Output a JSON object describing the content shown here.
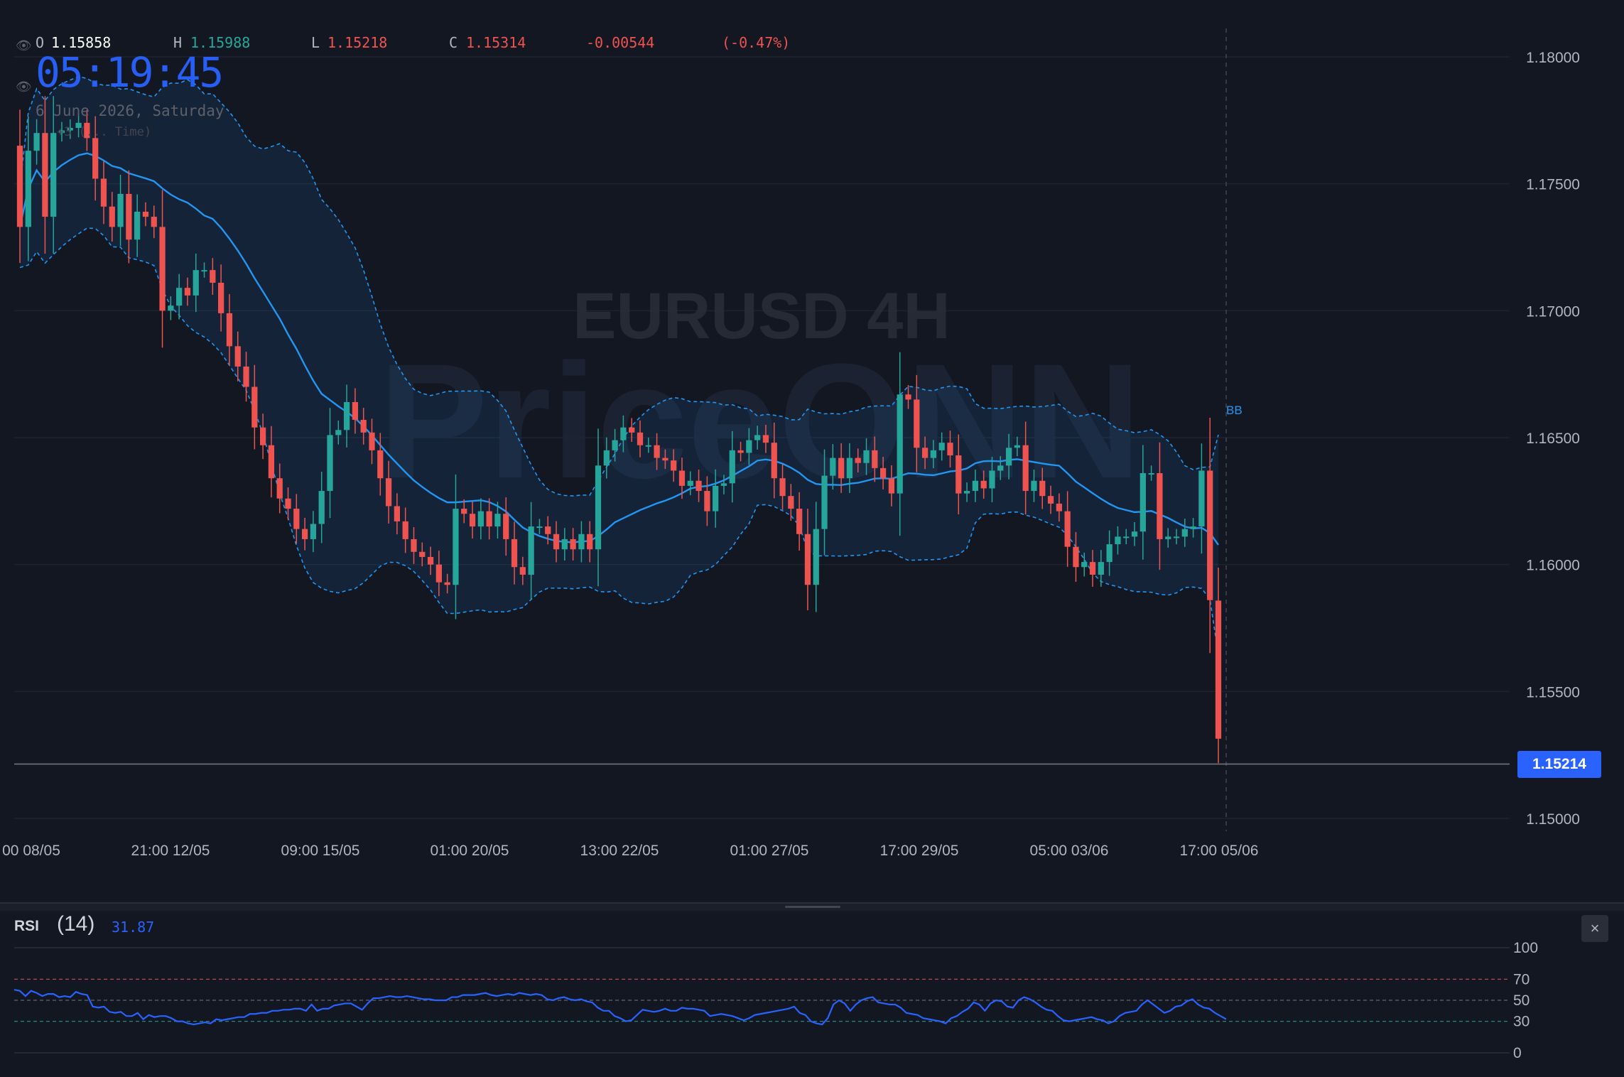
{
  "ohlc": {
    "o_label": "O",
    "o_value": "1.15858",
    "h_label": "H",
    "h_value": "1.15988",
    "l_label": "L",
    "l_value": "1.15218",
    "c_label": "C",
    "c_value": "1.15314",
    "change": "-0.00544",
    "change_pct": "(-0.47%)"
  },
  "clock": {
    "time": "05:19:45",
    "date": "6 June 2026, Saturday",
    "timezone": "+3 (... Time)"
  },
  "watermark": {
    "line1": "EURUSD 4H",
    "line2": "PriceONN"
  },
  "current_price": "1.15214",
  "indicator_label": "BB",
  "rsi": {
    "label": "RSI",
    "period": "(14)",
    "value": "31.87",
    "close_icon": "×"
  },
  "colors": {
    "up": "#26a69a",
    "down": "#ef5350",
    "bb": "#2196f3",
    "rsi": "#2962ff",
    "accent": "#2962ff",
    "background": "#131722"
  },
  "chart_data": [
    {
      "type": "candlestick",
      "title": "",
      "ylim": [
        1.1497,
        1.1812
      ],
      "y_ticks": [
        "1.18000",
        "1.17500",
        "1.17000",
        "1.16500",
        "1.16000",
        "1.15500",
        "1.15000"
      ],
      "y_tick_values": [
        1.18,
        1.175,
        1.17,
        1.165,
        1.16,
        1.155,
        1.15
      ],
      "x_tick_labels": [
        "00 08/05",
        "21:00 12/05",
        "09:00 15/05",
        "01:00 20/05",
        "13:00 22/05",
        "01:00 27/05",
        "17:00 29/05",
        "05:00 03/06",
        "17:00 05/06"
      ],
      "grid": true,
      "indicator": "Bollinger Bands",
      "close": [
        1.1733,
        1.1763,
        1.177,
        1.1737,
        1.177,
        1.1771,
        1.1772,
        1.1774,
        1.1768,
        1.1752,
        1.1741,
        1.1733,
        1.1746,
        1.1728,
        1.1739,
        1.1737,
        1.1733,
        1.17,
        1.1702,
        1.1709,
        1.1706,
        1.1716,
        1.1716,
        1.1711,
        1.1699,
        1.1686,
        1.1678,
        1.167,
        1.1654,
        1.1647,
        1.1634,
        1.1626,
        1.1622,
        1.1614,
        1.161,
        1.1616,
        1.1629,
        1.1651,
        1.1653,
        1.1664,
        1.1657,
        1.1652,
        1.1645,
        1.1634,
        1.1623,
        1.1617,
        1.161,
        1.1605,
        1.1603,
        1.16,
        1.1593,
        1.1592,
        1.1622,
        1.162,
        1.1615,
        1.1621,
        1.1615,
        1.162,
        1.161,
        1.1599,
        1.1596,
        1.1615,
        1.1615,
        1.1612,
        1.1606,
        1.161,
        1.1606,
        1.1612,
        1.1606,
        1.1639,
        1.1645,
        1.1649,
        1.1654,
        1.1652,
        1.1647,
        1.1647,
        1.1642,
        1.1641,
        1.1637,
        1.1631,
        1.1633,
        1.1629,
        1.1621,
        1.1631,
        1.1632,
        1.1645,
        1.1644,
        1.1649,
        1.1651,
        1.1648,
        1.1634,
        1.1627,
        1.1622,
        1.1612,
        1.1592,
        1.1614,
        1.1635,
        1.1642,
        1.1634,
        1.1642,
        1.164,
        1.1645,
        1.1638,
        1.1634,
        1.1628,
        1.1667,
        1.1665,
        1.1646,
        1.1642,
        1.1645,
        1.1648,
        1.1643,
        1.1628,
        1.1629,
        1.1633,
        1.163,
        1.1637,
        1.1639,
        1.1646,
        1.1647,
        1.1629,
        1.1633,
        1.1627,
        1.1624,
        1.1621,
        1.1607,
        1.1599,
        1.1601,
        1.1596,
        1.1601,
        1.1608,
        1.1611,
        1.1611,
        1.1613,
        1.1636,
        1.1636,
        1.161,
        1.1611,
        1.1611,
        1.1614,
        1.1615,
        1.1637,
        1.1586,
        1.1532
      ]
    },
    {
      "type": "line",
      "title": "RSI (14)",
      "ylim": [
        0,
        100
      ],
      "y_ticks": [
        "100",
        "70",
        "50",
        "30",
        "0"
      ],
      "levels": [
        70,
        50,
        30
      ],
      "series": [
        {
          "name": "RSI",
          "values": [
            60,
            59,
            54,
            59,
            57,
            54,
            56,
            56,
            53,
            54,
            53,
            58,
            56,
            55,
            44,
            43,
            44,
            39,
            38,
            39,
            35,
            35,
            38,
            32,
            36,
            34,
            35,
            35,
            33,
            30,
            30,
            28,
            27,
            28,
            29,
            28,
            32,
            31,
            32,
            33,
            34,
            34,
            37,
            37,
            38,
            38,
            40,
            40,
            41,
            41,
            42,
            42,
            40,
            46,
            40,
            42,
            42,
            45,
            46,
            47,
            47,
            44,
            41,
            47,
            52,
            52,
            53,
            54,
            53,
            53,
            54,
            53,
            52,
            51,
            51,
            50,
            50,
            50,
            53,
            53,
            55,
            55,
            55,
            56,
            57,
            55,
            54,
            55,
            56,
            55,
            57,
            56,
            55,
            56,
            55,
            51,
            50,
            52,
            53,
            51,
            50,
            51,
            49,
            48,
            43,
            40,
            40,
            35,
            33,
            30,
            31,
            36,
            41,
            40,
            39,
            40,
            42,
            40,
            40,
            43,
            42,
            42,
            41,
            40,
            35,
            36,
            37,
            36,
            35,
            33,
            31,
            33,
            36,
            37,
            38,
            39,
            40,
            41,
            42,
            44,
            38,
            36,
            30,
            28,
            27,
            33,
            46,
            50,
            47,
            40,
            46,
            50,
            52,
            53,
            48,
            47,
            46,
            46,
            43,
            38,
            37,
            36,
            33,
            32,
            31,
            30,
            28,
            33,
            35,
            39,
            42,
            48,
            46,
            40,
            47,
            50,
            49,
            44,
            43,
            50,
            53,
            51,
            48,
            44,
            41,
            40,
            35,
            31,
            30,
            31,
            32,
            33,
            34,
            32,
            31,
            28,
            30,
            35,
            38,
            39,
            40,
            46,
            50,
            46,
            42,
            38,
            40,
            44,
            45,
            49,
            51,
            46,
            43,
            42,
            38,
            35,
            32
          ]
        }
      ]
    }
  ]
}
